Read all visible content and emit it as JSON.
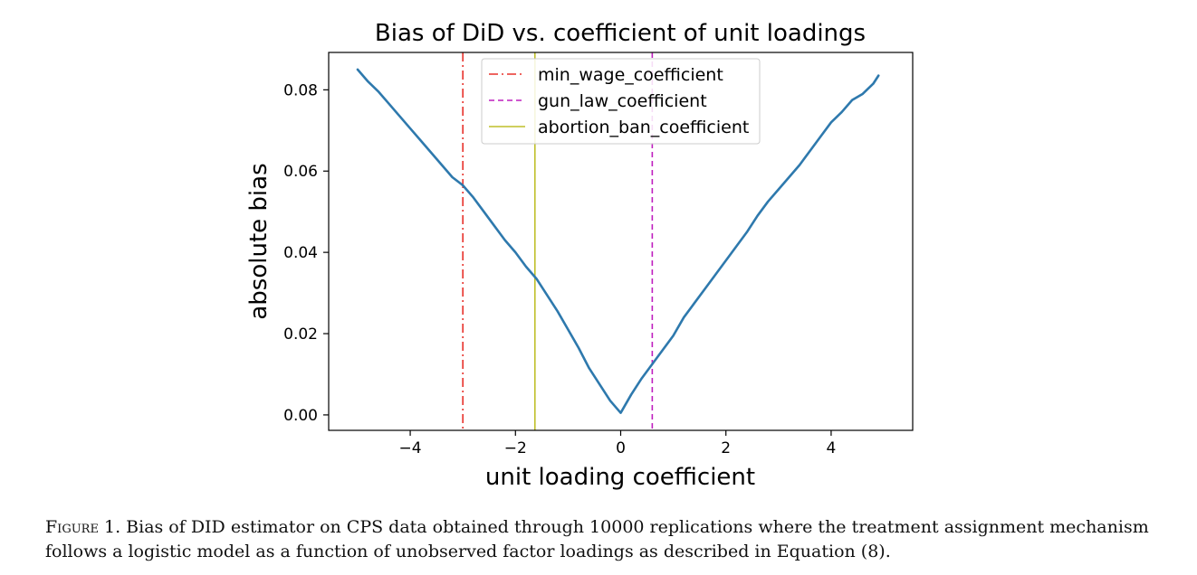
{
  "chart_data": {
    "type": "line",
    "title": "Bias of DiD vs. coefficient of unit loadings",
    "xlabel": "unit loading coefficient",
    "ylabel": "absolute bias",
    "xlim": [
      -5.55,
      5.55
    ],
    "ylim": [
      -0.0038,
      0.0892
    ],
    "xticks": [
      -4,
      -2,
      0,
      2,
      4
    ],
    "xtick_labels": [
      "−4",
      "−2",
      "0",
      "2",
      "4"
    ],
    "yticks": [
      0.0,
      0.02,
      0.04,
      0.06,
      0.08
    ],
    "ytick_labels": [
      "0.00",
      "0.02",
      "0.04",
      "0.06",
      "0.08"
    ],
    "grid": false,
    "legend_position": "upper center",
    "series": [
      {
        "type": "line",
        "color": "#2e79ad",
        "x": [
          -5.0,
          -4.8,
          -4.6,
          -4.4,
          -4.2,
          -4.0,
          -3.8,
          -3.6,
          -3.4,
          -3.2,
          -3.0,
          -2.8,
          -2.6,
          -2.4,
          -2.2,
          -2.0,
          -1.8,
          -1.6,
          -1.4,
          -1.2,
          -1.0,
          -0.8,
          -0.6,
          -0.4,
          -0.2,
          0.0,
          0.2,
          0.4,
          0.6,
          0.8,
          1.0,
          1.2,
          1.4,
          1.6,
          1.8,
          2.0,
          2.2,
          2.4,
          2.6,
          2.8,
          3.0,
          3.2,
          3.4,
          3.6,
          3.8,
          4.0,
          4.2,
          4.4,
          4.6,
          4.8,
          4.9
        ],
        "y": [
          0.085,
          0.082,
          0.0795,
          0.0765,
          0.0735,
          0.0705,
          0.0675,
          0.0645,
          0.0615,
          0.0585,
          0.0565,
          0.0535,
          0.05,
          0.0465,
          0.043,
          0.04,
          0.0365,
          0.0335,
          0.0295,
          0.0255,
          0.021,
          0.0165,
          0.0115,
          0.0075,
          0.0035,
          0.0005,
          0.005,
          0.009,
          0.0125,
          0.016,
          0.0195,
          0.024,
          0.0275,
          0.031,
          0.0345,
          0.038,
          0.0415,
          0.045,
          0.049,
          0.0525,
          0.0555,
          0.0585,
          0.0615,
          0.065,
          0.0685,
          0.072,
          0.0745,
          0.0775,
          0.079,
          0.0815,
          0.0835
        ]
      }
    ],
    "vlines": [
      {
        "x": -3.0,
        "label": "min_wage_coefficient",
        "color": "#e8322b",
        "style": "dashdot"
      },
      {
        "x": 0.6,
        "label": "gun_law_coefficient",
        "color": "#bf1fbf",
        "style": "dashed"
      },
      {
        "x": -1.63,
        "label": "abortion_ban_coefficient",
        "color": "#bfbf2a",
        "style": "solid"
      }
    ]
  },
  "caption": {
    "lead": "Figure 1.",
    "text": " Bias of DID estimator on CPS data obtained through 10000 replications where the treatment assignment mechanism follows a logistic model as a function of unobserved factor loadings as described in Equation (8)."
  }
}
